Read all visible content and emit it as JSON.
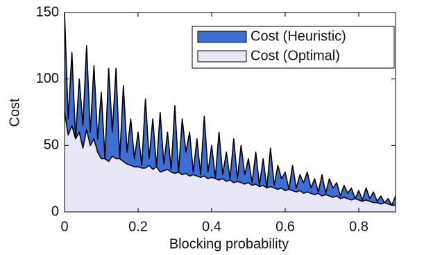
{
  "chart_data": {
    "type": "area",
    "xlabel": "Blocking probability",
    "ylabel": "Cost",
    "x": [
      0,
      0.01,
      0.02,
      0.03,
      0.04,
      0.05,
      0.06,
      0.07,
      0.08,
      0.09,
      0.1,
      0.11,
      0.12,
      0.13,
      0.14,
      0.15,
      0.16,
      0.17,
      0.18,
      0.19,
      0.2,
      0.21,
      0.22,
      0.23,
      0.24,
      0.25,
      0.26,
      0.27,
      0.28,
      0.29,
      0.3,
      0.31,
      0.32,
      0.33,
      0.34,
      0.35,
      0.36,
      0.37,
      0.38,
      0.39,
      0.4,
      0.41,
      0.42,
      0.43,
      0.44,
      0.45,
      0.46,
      0.47,
      0.48,
      0.49,
      0.5,
      0.51,
      0.52,
      0.53,
      0.54,
      0.55,
      0.56,
      0.57,
      0.58,
      0.59,
      0.6,
      0.61,
      0.62,
      0.63,
      0.64,
      0.65,
      0.66,
      0.67,
      0.68,
      0.69,
      0.7,
      0.71,
      0.72,
      0.73,
      0.74,
      0.75,
      0.76,
      0.77,
      0.78,
      0.79,
      0.8,
      0.81,
      0.82,
      0.83,
      0.84,
      0.85,
      0.86,
      0.87,
      0.88,
      0.89,
      0.9
    ],
    "series": [
      {
        "name": "Cost (Heuristic)",
        "color": "#3b6fd6",
        "values": [
          150,
          70,
          120,
          55,
          100,
          65,
          125,
          60,
          110,
          55,
          90,
          40,
          108,
          60,
          108,
          40,
          95,
          45,
          70,
          40,
          60,
          35,
          85,
          40,
          70,
          34,
          75,
          36,
          60,
          32,
          80,
          30,
          70,
          45,
          60,
          30,
          55,
          28,
          72,
          30,
          50,
          26,
          60,
          28,
          45,
          25,
          55,
          25,
          50,
          28,
          40,
          22,
          45,
          20,
          40,
          18,
          48,
          20,
          35,
          25,
          30,
          17,
          35,
          18,
          28,
          22,
          30,
          18,
          25,
          15,
          28,
          14,
          25,
          18,
          22,
          12,
          20,
          14,
          18,
          10,
          16,
          9,
          18,
          10,
          15,
          8,
          12,
          7,
          10,
          5,
          12
        ]
      },
      {
        "name": "Cost (Optimal)",
        "color": "#e7e7f8",
        "values": [
          75,
          58,
          65,
          55,
          60,
          48,
          62,
          50,
          55,
          45,
          40,
          40,
          38,
          42,
          40,
          40,
          38,
          36,
          35,
          34,
          34,
          33,
          33,
          35,
          32,
          34,
          30,
          31,
          32,
          30,
          29,
          30,
          28,
          29,
          27,
          28,
          27,
          26,
          27,
          25,
          26,
          25,
          24,
          25,
          23,
          24,
          22,
          23,
          22,
          21,
          22,
          20,
          21,
          19,
          20,
          18,
          19,
          18,
          17,
          18,
          16,
          17,
          16,
          15,
          16,
          14,
          15,
          14,
          13,
          14,
          12,
          13,
          12,
          11,
          12,
          10,
          11,
          10,
          9,
          10,
          9,
          8,
          9,
          8,
          7,
          7,
          6,
          7,
          6,
          5,
          5
        ]
      }
    ],
    "xlim": [
      0,
      0.9
    ],
    "ylim": [
      0,
      150
    ],
    "xticks": [
      0,
      0.2,
      0.4,
      0.6,
      0.8
    ],
    "yticks": [
      0,
      50,
      100,
      150
    ],
    "legend": "upper right"
  }
}
